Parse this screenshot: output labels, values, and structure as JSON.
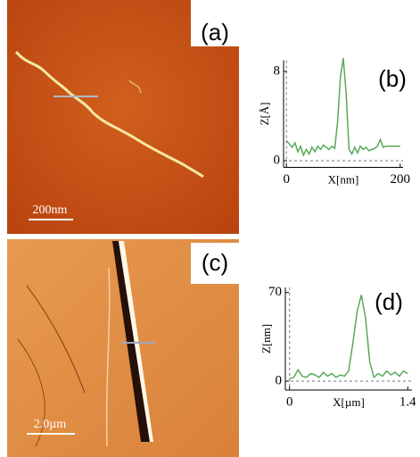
{
  "images": [
    {
      "label": "(a)",
      "scale_bar": "200nm"
    },
    {
      "label": "(c)",
      "scale_bar": "2.0µm"
    }
  ],
  "chart_data": [
    {
      "type": "line",
      "panel_label": "(b)",
      "ylabel": "Z[Å]",
      "xlabel": "X[nm]",
      "color": "#5aa85a",
      "x": [
        0,
        5,
        10,
        15,
        20,
        25,
        30,
        35,
        40,
        45,
        50,
        55,
        60,
        65,
        70,
        75,
        80,
        85,
        90,
        95,
        100,
        105,
        110,
        115,
        120,
        125,
        130,
        135,
        140,
        145,
        150,
        155,
        160,
        165,
        170,
        175,
        180,
        190,
        200
      ],
      "values": [
        1.8,
        1.5,
        1.2,
        1.6,
        0.8,
        1.3,
        0.5,
        1.0,
        0.6,
        1.2,
        0.8,
        1.3,
        1.0,
        1.4,
        1.2,
        1.0,
        1.3,
        1.1,
        3.5,
        7.5,
        9.2,
        6.0,
        1.0,
        0.6,
        1.2,
        0.7,
        1.3,
        1.0,
        1.2,
        0.9,
        1.0,
        1.1,
        1.3,
        1.9,
        1.2,
        1.3,
        1.3,
        1.3,
        1.3
      ],
      "xlim": [
        -5,
        205
      ],
      "ylim": [
        -0.6,
        9
      ],
      "xticks": [
        0,
        200
      ],
      "yticks": [
        0,
        8
      ]
    },
    {
      "type": "line",
      "panel_label": "(d)",
      "ylabel": "Z[nm]",
      "xlabel": "X[µm]",
      "color": "#5aa85a",
      "x": [
        0,
        0.05,
        0.1,
        0.15,
        0.2,
        0.25,
        0.3,
        0.35,
        0.4,
        0.45,
        0.5,
        0.55,
        0.6,
        0.65,
        0.7,
        0.75,
        0.8,
        0.85,
        0.9,
        0.95,
        1.0,
        1.05,
        1.1,
        1.15,
        1.2,
        1.25,
        1.3,
        1.35,
        1.4
      ],
      "values": [
        2,
        3,
        9,
        4,
        3,
        6,
        5,
        3,
        7,
        4,
        6,
        3,
        5,
        4,
        8,
        30,
        55,
        68,
        50,
        15,
        3,
        6,
        4,
        8,
        5,
        7,
        4,
        8,
        6
      ],
      "xlim": [
        -0.05,
        1.45
      ],
      "ylim": [
        -7,
        74
      ],
      "xticks": [
        0,
        1.4
      ],
      "yticks": [
        0,
        70
      ]
    }
  ]
}
